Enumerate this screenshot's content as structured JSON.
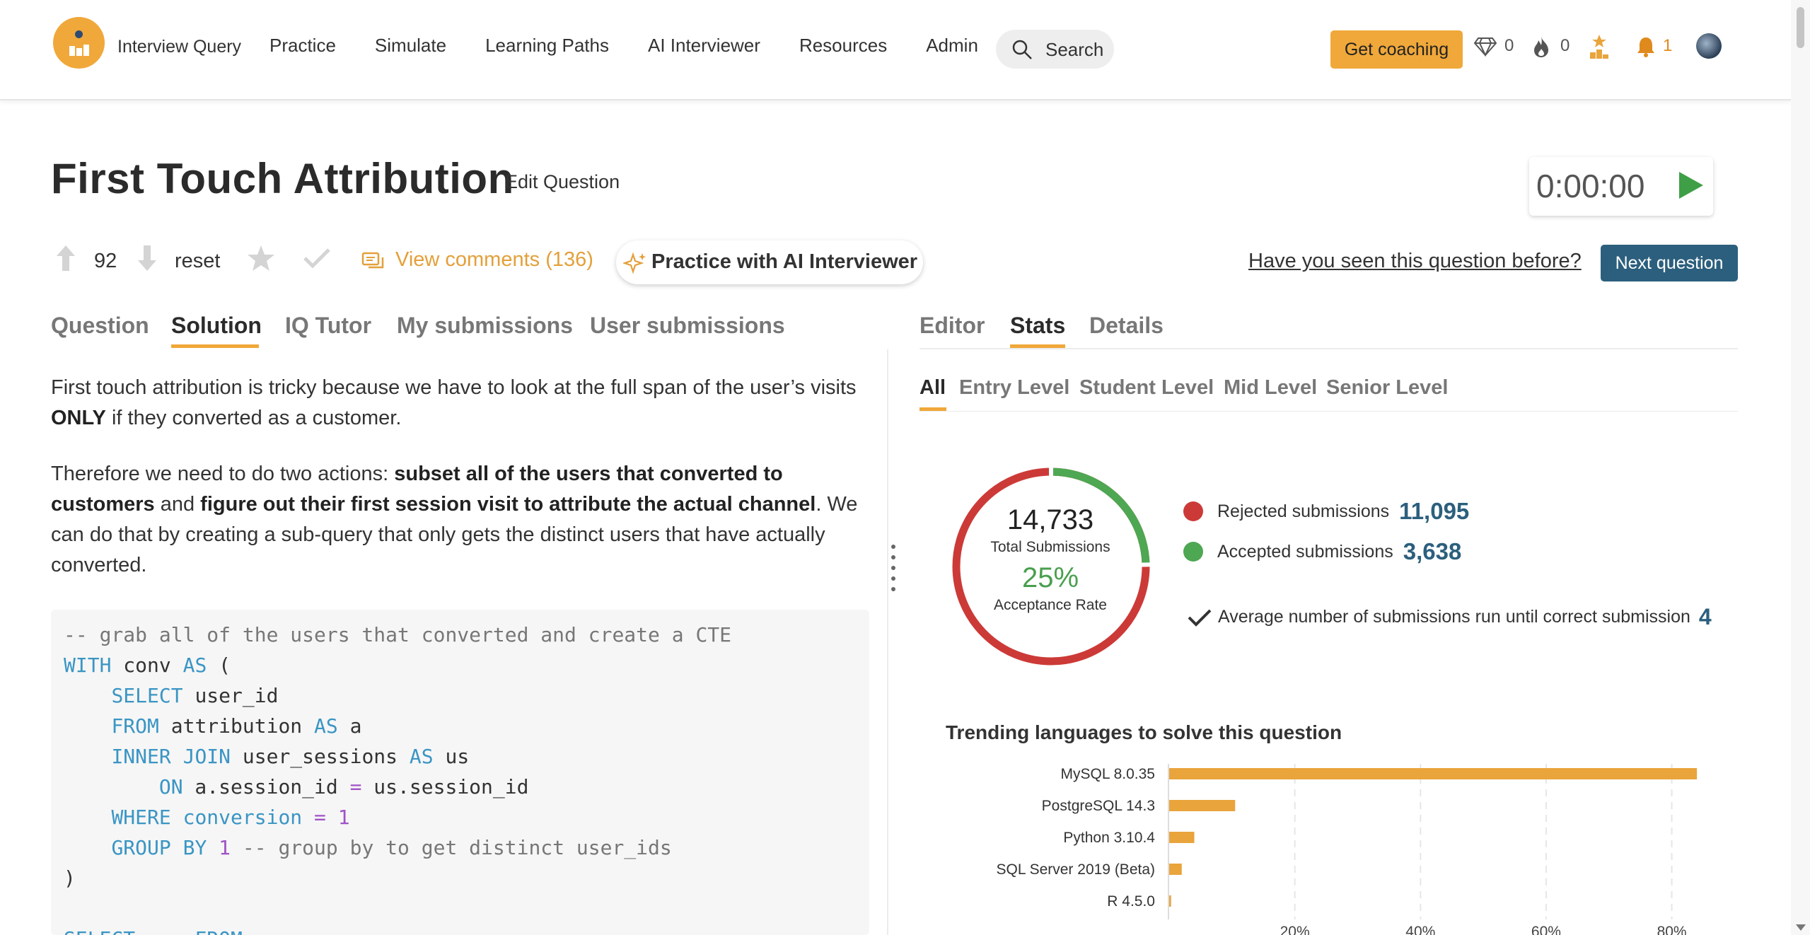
{
  "nav": {
    "brand": "Interview Query",
    "links": [
      "Practice",
      "Simulate",
      "Learning Paths",
      "AI Interviewer",
      "Resources",
      "Admin"
    ],
    "search_label": "Search",
    "coaching_label": "Get coaching",
    "gems_count": "0",
    "streak_count": "0",
    "notifications_count": "1"
  },
  "question": {
    "title": "First Touch Attribution",
    "edit_label": "Edit Question",
    "timer": "0:00:00",
    "votes": "92",
    "reset_label": "reset",
    "comments_label": "View comments (136)",
    "ai_practice_label": "Practice with AI Interviewer",
    "seen_before_label": "Have you seen this question before?",
    "next_label": "Next question"
  },
  "left_tabs": [
    "Question",
    "Solution",
    "IQ Tutor",
    "My submissions",
    "User submissions"
  ],
  "left_active_tab": "Solution",
  "right_tabs": [
    "Editor",
    "Stats",
    "Details"
  ],
  "right_active_tab": "Stats",
  "solution": {
    "p1_a": "First touch attribution is tricky because we have to look at the full span of the user’s visits ",
    "p1_b": "ONLY",
    "p1_c": " if they converted as a customer.",
    "p2_a": "Therefore we need to do two actions: ",
    "p2_b": "subset all of the users that converted to customers",
    "p2_c": " and ",
    "p2_d": "figure out their first session visit to attribute the actual channel",
    "p2_e": ". We can do that by creating a sub-query that only gets the distinct users that have actually converted."
  },
  "code": {
    "l1": "-- grab all of the users that converted and create a CTE",
    "l2_kw": "WITH",
    "l2_a": " conv ",
    "l2_kw2": "AS",
    "l2_b": " (",
    "l3_kw": "SELECT",
    "l3_a": " user_id",
    "l4_kw": "FROM",
    "l4_a": " attribution ",
    "l4_kw2": "AS",
    "l4_b": " a",
    "l5_kw": "INNER JOIN",
    "l5_a": " user_sessions ",
    "l5_kw2": "AS",
    "l5_b": " us",
    "l6_kw": "ON",
    "l6_a": " a.session_id ",
    "l6_op": "=",
    "l6_b": " us.session_id",
    "l7_kw": "WHERE",
    "l7_a": " conversion ",
    "l7_op": "=",
    "l7_num": " 1",
    "l8_kw": "GROUP BY",
    "l8_num": " 1",
    "l8_cm": " -- group by to get distinct user_ids",
    "l9": ")",
    "l10": "SELECT ... FROM"
  },
  "stats": {
    "levels": [
      "All",
      "Entry Level",
      "Student Level",
      "Mid Level",
      "Senior Level"
    ],
    "active_level": "All",
    "total_submissions": "14,733",
    "total_label": "Total Submissions",
    "acceptance_rate": "25%",
    "acceptance_label": "Acceptance Rate",
    "rejected_label": "Rejected submissions",
    "rejected_value": "11,095",
    "accepted_label": "Accepted submissions",
    "accepted_value": "3,638",
    "avg_label": "Average number of submissions run until correct submission",
    "avg_value": "4",
    "colors": {
      "rejected": "#cc3a37",
      "accepted": "#4ea752",
      "bar": "#e9a43c",
      "value_text": "#2c5f7d"
    }
  },
  "chart_data": {
    "type": "bar",
    "orientation": "horizontal",
    "title": "Trending languages to solve this question",
    "categories": [
      "MySQL 8.0.35",
      "PostgreSQL 14.3",
      "Python 3.10.4",
      "SQL Server 2019 (Beta)",
      "R 4.5.0"
    ],
    "values": [
      84,
      10.5,
      4,
      2,
      0.3
    ],
    "x_ticks": [
      "20%",
      "40%",
      "60%",
      "80%"
    ],
    "xlim": [
      0,
      85
    ],
    "grid": true
  }
}
